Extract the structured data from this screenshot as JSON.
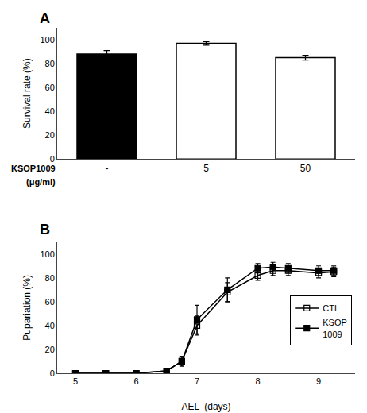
{
  "chart_data": [
    {
      "type": "bar",
      "title": "A",
      "categories": [
        "-",
        "5",
        "50"
      ],
      "values": [
        88,
        97,
        85
      ],
      "errors": [
        3,
        1.5,
        2
      ],
      "colors": [
        "black",
        "white",
        "white"
      ],
      "ylabel": "Survival rate (%)",
      "annotations": [
        "KSOP1009",
        "(μg/ml)"
      ],
      "ylim": [
        0,
        110
      ],
      "yticks": [
        0,
        20,
        40,
        60,
        80,
        100
      ],
      "grid": false
    },
    {
      "type": "line",
      "title": "B",
      "x": [
        5,
        5.5,
        6,
        6.5,
        6.75,
        7,
        7.5,
        8,
        8.25,
        8.5,
        9,
        9.25
      ],
      "series": [
        {
          "name": "CTL",
          "color": "black",
          "marker": "square-open",
          "values": [
            0,
            0,
            0,
            2,
            10,
            40,
            68,
            82,
            86,
            86,
            84,
            85
          ],
          "errors": [
            0,
            0,
            0,
            1,
            4,
            8,
            8,
            4,
            4,
            4,
            4,
            4
          ]
        },
        {
          "name": "KSOP\n1009",
          "color": "black",
          "marker": "square",
          "values": [
            0,
            0,
            0,
            2,
            10,
            45,
            70,
            88,
            89,
            88,
            86,
            86
          ],
          "errors": [
            0,
            0,
            0,
            1,
            4,
            12,
            10,
            4,
            4,
            4,
            4,
            4
          ]
        }
      ],
      "xlabel": "AEL  (days)",
      "ylabel": "Pupariation (%)",
      "xlim": [
        4.7,
        9.6
      ],
      "xticks": [
        5,
        6,
        7,
        8,
        9
      ],
      "ylim": [
        0,
        110
      ],
      "yticks": [
        0,
        20,
        40,
        60,
        80,
        100
      ],
      "grid": false,
      "legend": "right"
    }
  ]
}
